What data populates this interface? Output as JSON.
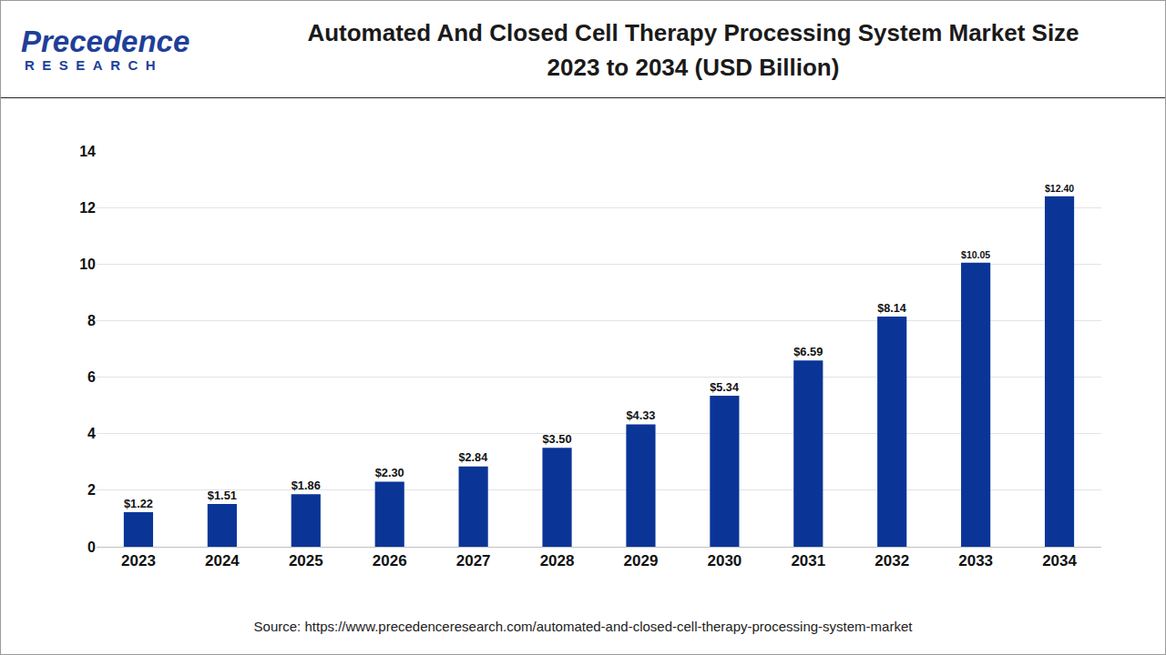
{
  "chart_data": {
    "type": "bar",
    "title": "Automated And Closed Cell Therapy Processing System Market Size\n2023 to 2034 (USD Billion)",
    "logo": {
      "name": "Precedence",
      "tagline": "RESEARCH"
    },
    "source": "Source: https://www.precedenceresearch.com/automated-and-closed-cell-therapy-processing-system-market",
    "categories": [
      "2023",
      "2024",
      "2025",
      "2026",
      "2027",
      "2028",
      "2029",
      "2030",
      "2031",
      "2032",
      "2033",
      "2034"
    ],
    "values": [
      1.22,
      1.51,
      1.86,
      2.3,
      2.84,
      3.5,
      4.33,
      5.34,
      6.59,
      8.14,
      10.05,
      12.4
    ],
    "value_labels": [
      "$1.22",
      "$1.51",
      "$1.86",
      "$2.30",
      "$2.84",
      "$3.50",
      "$4.33",
      "$5.34",
      "$6.59",
      "$8.14",
      "$10.05",
      "$12.40"
    ],
    "color": "#0a3597",
    "ylim": [
      0,
      14
    ],
    "yticks": [
      0,
      2,
      4,
      6,
      8,
      10,
      12,
      14
    ],
    "grid": true,
    "data_labels": true
  }
}
